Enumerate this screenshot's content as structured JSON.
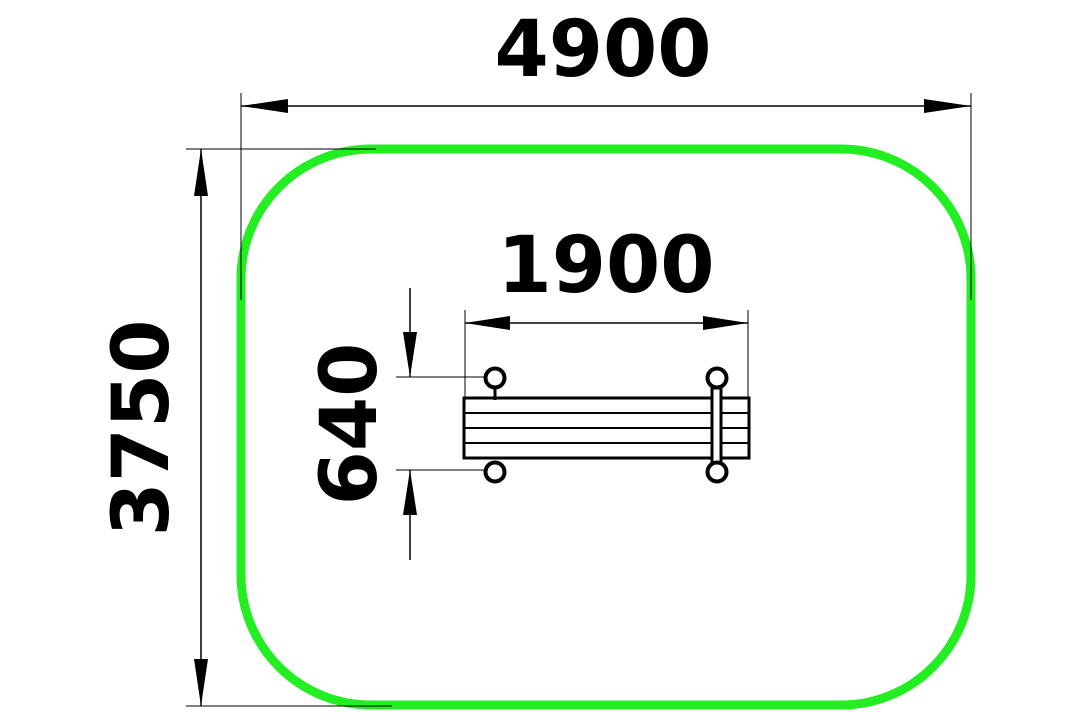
{
  "dimensions": {
    "overall_width": "4900",
    "overall_depth": "3750",
    "bench_length": "1900",
    "bench_width": "640"
  },
  "colors": {
    "safety_zone": "#22ee22",
    "lines": "#000000"
  }
}
